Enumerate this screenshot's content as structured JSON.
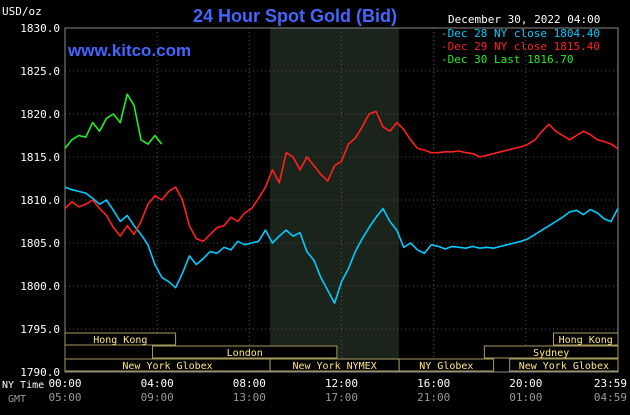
{
  "chart_data": {
    "type": "line",
    "title": "24 Hour Spot Gold (Bid)",
    "ylabel": "USD/oz",
    "date": "December 30, 2022 04:00",
    "site": "www.kitco.com",
    "ylim": [
      1790.0,
      1830.0
    ],
    "yticks": [
      "1830.0",
      "1825.0",
      "1820.0",
      "1815.0",
      "1810.0",
      "1805.0",
      "1800.0",
      "1795.0",
      "1790.0"
    ],
    "xlim": [
      0,
      24
    ],
    "x_axis_label_ny": "NY Time",
    "x_axis_label_gmt": "GMT",
    "xticks_ny": [
      "00:00",
      "04:00",
      "08:00",
      "12:00",
      "16:00",
      "20:00",
      "23:59"
    ],
    "xticks_gmt": [
      "05:00",
      "09:00",
      "13:00",
      "17:00",
      "21:00",
      "01:00",
      "04:59"
    ],
    "highlight_band": [
      8.9,
      14.5
    ],
    "legend": [
      {
        "label": "Dec 28 NY close 1804.40",
        "color": "#00ccff"
      },
      {
        "label": "Dec 29 NY close 1815.40",
        "color": "#ff2020"
      },
      {
        "label": "Dec 30 Last 1816.70",
        "color": "#22ee22"
      }
    ],
    "sessions": [
      {
        "label": "Hong Kong",
        "row": 0,
        "start": 0.0,
        "end": 4.8
      },
      {
        "label": "Hong Kong",
        "row": 0,
        "start": 21.2,
        "end": 24.0
      },
      {
        "label": "London",
        "row": 1,
        "start": 3.8,
        "end": 11.8
      },
      {
        "label": "Sydney",
        "row": 1,
        "start": 18.2,
        "end": 24.0
      },
      {
        "label": "New York Globex",
        "row": 2,
        "start": 0.0,
        "end": 8.9
      },
      {
        "label": "New York NYMEX",
        "row": 2,
        "start": 8.9,
        "end": 14.5
      },
      {
        "label": "NY Globex",
        "row": 2,
        "start": 14.5,
        "end": 18.6
      },
      {
        "label": "New York Globex",
        "row": 2,
        "start": 19.3,
        "end": 24.0
      }
    ],
    "series": [
      {
        "color": "#00ccff",
        "x": [
          0.0,
          0.3,
          0.6,
          0.9,
          1.2,
          1.5,
          1.8,
          2.1,
          2.4,
          2.7,
          3.0,
          3.3,
          3.6,
          3.9,
          4.2,
          4.5,
          4.8,
          5.1,
          5.4,
          5.7,
          6.0,
          6.3,
          6.6,
          6.9,
          7.2,
          7.5,
          7.8,
          8.1,
          8.4,
          8.7,
          9.0,
          9.3,
          9.6,
          9.9,
          10.2,
          10.5,
          10.8,
          11.1,
          11.4,
          11.7,
          12.0,
          12.3,
          12.6,
          12.9,
          13.2,
          13.5,
          13.8,
          14.1,
          14.4,
          14.7,
          15.0,
          15.3,
          15.6,
          15.9,
          16.2,
          16.5,
          16.8,
          17.1,
          17.4,
          17.7,
          18.0,
          18.3,
          18.6,
          18.9,
          19.2,
          19.5,
          19.8,
          20.1,
          20.4,
          20.7,
          21.0,
          21.3,
          21.6,
          21.9,
          22.2,
          22.5,
          22.8,
          23.1,
          23.4,
          23.7,
          23.99
        ],
        "values": [
          1811.5,
          1811.2,
          1811.0,
          1810.8,
          1810.2,
          1809.5,
          1810.0,
          1808.8,
          1807.5,
          1808.2,
          1807.0,
          1806.0,
          1804.8,
          1802.5,
          1801.0,
          1800.5,
          1799.8,
          1801.5,
          1803.5,
          1802.5,
          1803.2,
          1804.0,
          1803.8,
          1804.5,
          1804.2,
          1805.2,
          1804.8,
          1805.0,
          1805.2,
          1806.5,
          1805.0,
          1805.8,
          1806.5,
          1805.8,
          1806.2,
          1804.0,
          1803.0,
          1801.0,
          1799.5,
          1798.0,
          1800.5,
          1802.0,
          1804.0,
          1805.5,
          1806.8,
          1808.0,
          1809.0,
          1807.5,
          1806.5,
          1804.5,
          1805.0,
          1804.2,
          1803.8,
          1804.8,
          1804.6,
          1804.3,
          1804.6,
          1804.5,
          1804.4,
          1804.6,
          1804.4,
          1804.5,
          1804.4,
          1804.6,
          1804.8,
          1805.0,
          1805.2,
          1805.5,
          1806.0,
          1806.5,
          1807.0,
          1807.5,
          1808.0,
          1808.6,
          1808.8,
          1808.3,
          1808.9,
          1808.5,
          1807.8,
          1807.5,
          1809.0
        ]
      },
      {
        "color": "#ff2020",
        "x": [
          0.0,
          0.3,
          0.6,
          0.9,
          1.2,
          1.5,
          1.8,
          2.1,
          2.4,
          2.7,
          3.0,
          3.3,
          3.6,
          3.9,
          4.2,
          4.5,
          4.8,
          5.1,
          5.4,
          5.7,
          6.0,
          6.3,
          6.6,
          6.9,
          7.2,
          7.5,
          7.8,
          8.1,
          8.4,
          8.7,
          9.0,
          9.3,
          9.6,
          9.9,
          10.2,
          10.5,
          10.8,
          11.1,
          11.4,
          11.7,
          12.0,
          12.3,
          12.6,
          12.9,
          13.2,
          13.5,
          13.8,
          14.1,
          14.4,
          14.7,
          15.0,
          15.3,
          15.6,
          15.9,
          16.2,
          16.5,
          16.8,
          17.1,
          17.4,
          17.7,
          18.0,
          18.3,
          18.6,
          18.9,
          19.2,
          19.5,
          19.8,
          20.1,
          20.4,
          20.7,
          21.0,
          21.3,
          21.6,
          21.9,
          22.2,
          22.5,
          22.8,
          23.1,
          23.4,
          23.7,
          23.99
        ],
        "values": [
          1809.0,
          1809.8,
          1809.2,
          1809.5,
          1810.0,
          1809.0,
          1808.2,
          1806.8,
          1805.8,
          1807.0,
          1806.0,
          1807.5,
          1809.5,
          1810.5,
          1810.0,
          1811.0,
          1811.5,
          1810.0,
          1807.0,
          1805.5,
          1805.2,
          1806.0,
          1806.8,
          1807.0,
          1808.0,
          1807.5,
          1808.5,
          1809.0,
          1810.2,
          1811.5,
          1813.5,
          1812.0,
          1815.5,
          1815.0,
          1813.5,
          1815.0,
          1814.0,
          1813.0,
          1812.2,
          1814.0,
          1814.5,
          1816.5,
          1817.2,
          1818.5,
          1820.0,
          1820.3,
          1818.5,
          1818.0,
          1819.0,
          1818.2,
          1817.0,
          1816.0,
          1815.8,
          1815.5,
          1815.5,
          1815.6,
          1815.6,
          1815.7,
          1815.5,
          1815.4,
          1815.0,
          1815.2,
          1815.4,
          1815.6,
          1815.8,
          1816.0,
          1816.2,
          1816.5,
          1817.0,
          1818.0,
          1818.8,
          1818.0,
          1817.5,
          1817.0,
          1817.5,
          1818.0,
          1817.6,
          1817.0,
          1816.8,
          1816.5,
          1816.0
        ]
      },
      {
        "color": "#22ee22",
        "x": [
          0.0,
          0.3,
          0.6,
          0.9,
          1.2,
          1.5,
          1.8,
          2.1,
          2.4,
          2.7,
          3.0,
          3.3,
          3.6,
          3.9,
          4.2
        ],
        "values": [
          1816.0,
          1817.0,
          1817.5,
          1817.3,
          1819.0,
          1818.0,
          1819.5,
          1820.0,
          1819.0,
          1822.3,
          1821.0,
          1817.0,
          1816.5,
          1817.5,
          1816.5
        ]
      }
    ]
  }
}
